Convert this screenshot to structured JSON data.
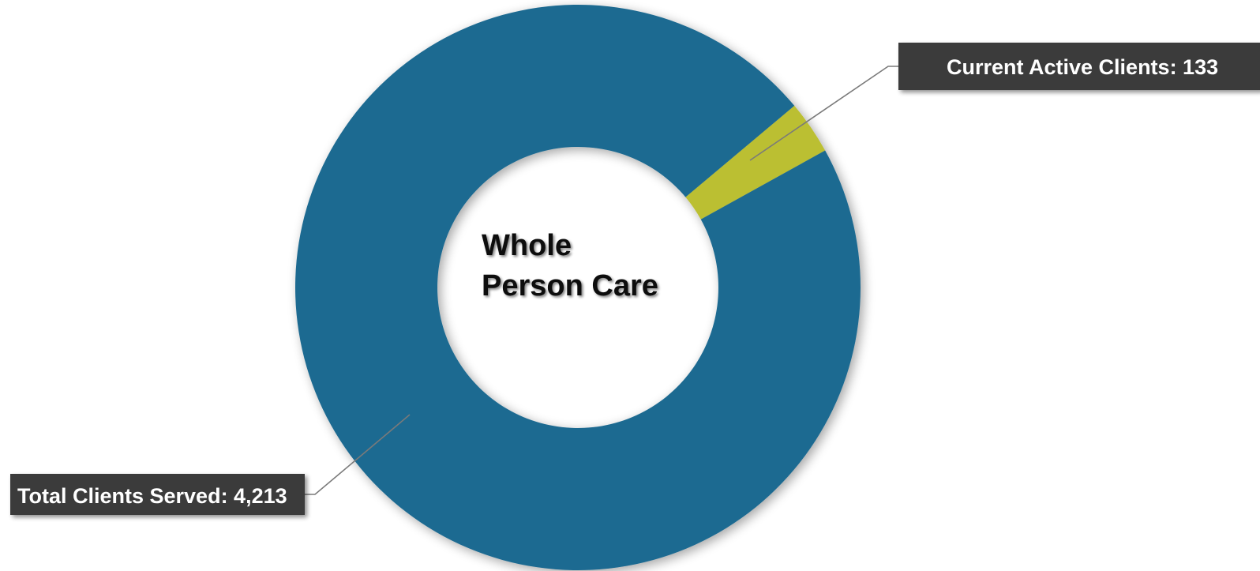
{
  "chart_data": {
    "type": "pie",
    "title": "",
    "center_label_lines": [
      "Whole",
      "Person Care"
    ],
    "slices": [
      {
        "label": "Current Active Clients: 133",
        "value": 133,
        "color": "#bbbf31"
      },
      {
        "label": "Total Clients Served: 4,213",
        "value": 4213,
        "color": "#1f6a91"
      }
    ]
  }
}
